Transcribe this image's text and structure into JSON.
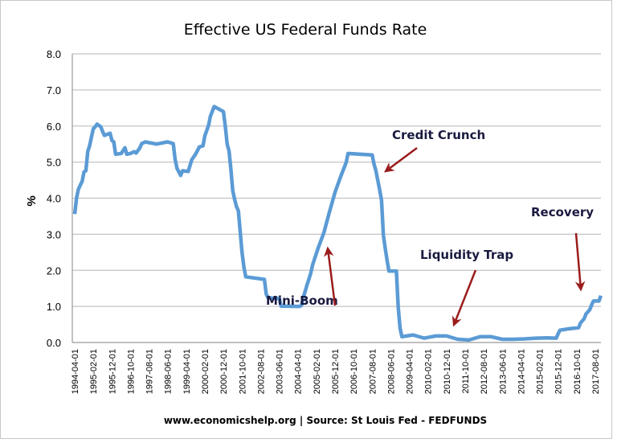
{
  "chart_data": {
    "type": "line",
    "title": "Effective US  Federal Funds Rate",
    "ylabel": "%",
    "xlabel": "",
    "ylim": [
      0,
      8
    ],
    "yticks": [
      "0.0",
      "1.0",
      "2.0",
      "3.0",
      "4.0",
      "5.0",
      "6.0",
      "7.0",
      "8.0"
    ],
    "xticks": [
      "1994-04-01",
      "1995-02-01",
      "1995-12-01",
      "1996-10-01",
      "1997-08-01",
      "1998-06-01",
      "1999-04-01",
      "2000-02-01",
      "2000-12-01",
      "2001-10-01",
      "2002-08-01",
      "2003-06-01",
      "2004-04-01",
      "2005-02-01",
      "2005-12-01",
      "2006-10-01",
      "2007-08-01",
      "2008-06-01",
      "2009-04-01",
      "2010-02-01",
      "2010-12-01",
      "2011-10-01",
      "2012-08-01",
      "2013-06-01",
      "2014-04-01",
      "2015-02-01",
      "2015-12-01",
      "2016-10-01",
      "2017-08-01"
    ],
    "grid": "horizontal",
    "line_color": "#5b9bd5",
    "annotation_color": "#9b1c1c",
    "series": [
      {
        "points": [
          [
            "1994-04",
            3.56
          ],
          [
            "1994-05",
            4.01
          ],
          [
            "1994-06",
            4.25
          ],
          [
            "1994-08",
            4.47
          ],
          [
            "1994-09",
            4.73
          ],
          [
            "1994-10",
            4.76
          ],
          [
            "1994-11",
            5.29
          ],
          [
            "1994-12",
            5.45
          ],
          [
            "1995-02",
            5.92
          ],
          [
            "1995-03",
            5.98
          ],
          [
            "1995-04",
            6.05
          ],
          [
            "1995-06",
            5.98
          ],
          [
            "1995-07",
            5.85
          ],
          [
            "1995-08",
            5.74
          ],
          [
            "1995-11",
            5.8
          ],
          [
            "1995-12",
            5.6
          ],
          [
            "1996-01",
            5.56
          ],
          [
            "1996-02",
            5.22
          ],
          [
            "1996-05",
            5.24
          ],
          [
            "1996-07",
            5.4
          ],
          [
            "1996-08",
            5.22
          ],
          [
            "1996-10",
            5.24
          ],
          [
            "1996-12",
            5.29
          ],
          [
            "1997-01",
            5.25
          ],
          [
            "1997-03",
            5.39
          ],
          [
            "1997-04",
            5.51
          ],
          [
            "1997-06",
            5.56
          ],
          [
            "1997-12",
            5.5
          ],
          [
            "1998-06",
            5.56
          ],
          [
            "1998-09",
            5.51
          ],
          [
            "1998-10",
            5.07
          ],
          [
            "1998-11",
            4.83
          ],
          [
            "1999-01",
            4.63
          ],
          [
            "1999-02",
            4.76
          ],
          [
            "1999-05",
            4.74
          ],
          [
            "1999-07",
            5.07
          ],
          [
            "1999-09",
            5.22
          ],
          [
            "1999-11",
            5.42
          ],
          [
            "2000-01",
            5.45
          ],
          [
            "2000-02",
            5.73
          ],
          [
            "2000-04",
            6.02
          ],
          [
            "2000-05",
            6.27
          ],
          [
            "2000-07",
            6.54
          ],
          [
            "2000-12",
            6.4
          ],
          [
            "2001-01",
            5.98
          ],
          [
            "2001-02",
            5.49
          ],
          [
            "2001-03",
            5.31
          ],
          [
            "2001-04",
            4.8
          ],
          [
            "2001-05",
            4.21
          ],
          [
            "2001-06",
            3.97
          ],
          [
            "2001-07",
            3.77
          ],
          [
            "2001-08",
            3.65
          ],
          [
            "2001-09",
            3.07
          ],
          [
            "2001-10",
            2.49
          ],
          [
            "2001-11",
            2.09
          ],
          [
            "2001-12",
            1.82
          ],
          [
            "2002-10",
            1.75
          ],
          [
            "2002-11",
            1.34
          ],
          [
            "2002-12",
            1.24
          ],
          [
            "2003-06",
            1.22
          ],
          [
            "2003-07",
            1.01
          ],
          [
            "2004-05",
            1.0
          ],
          [
            "2004-06",
            1.03
          ],
          [
            "2004-07",
            1.26
          ],
          [
            "2004-08",
            1.43
          ],
          [
            "2004-09",
            1.61
          ],
          [
            "2004-10",
            1.76
          ],
          [
            "2004-11",
            1.93
          ],
          [
            "2004-12",
            2.16
          ],
          [
            "2005-03",
            2.63
          ],
          [
            "2005-06",
            3.04
          ],
          [
            "2005-09",
            3.62
          ],
          [
            "2005-12",
            4.16
          ],
          [
            "2006-03",
            4.59
          ],
          [
            "2006-06",
            4.99
          ],
          [
            "2006-07",
            5.24
          ],
          [
            "2007-08",
            5.2
          ],
          [
            "2007-09",
            4.94
          ],
          [
            "2007-10",
            4.76
          ],
          [
            "2007-12",
            4.24
          ],
          [
            "2008-01",
            3.94
          ],
          [
            "2008-02",
            2.98
          ],
          [
            "2008-03",
            2.61
          ],
          [
            "2008-04",
            2.28
          ],
          [
            "2008-05",
            1.98
          ],
          [
            "2008-09",
            1.98
          ],
          [
            "2008-10",
            0.97
          ],
          [
            "2008-11",
            0.39
          ],
          [
            "2008-12",
            0.16
          ],
          [
            "2009-06",
            0.21
          ],
          [
            "2009-12",
            0.12
          ],
          [
            "2010-06",
            0.18
          ],
          [
            "2010-12",
            0.18
          ],
          [
            "2011-06",
            0.09
          ],
          [
            "2011-12",
            0.07
          ],
          [
            "2012-06",
            0.16
          ],
          [
            "2012-12",
            0.16
          ],
          [
            "2013-06",
            0.09
          ],
          [
            "2013-12",
            0.09
          ],
          [
            "2014-06",
            0.1
          ],
          [
            "2014-12",
            0.12
          ],
          [
            "2015-06",
            0.13
          ],
          [
            "2015-11",
            0.12
          ],
          [
            "2015-12",
            0.24
          ],
          [
            "2016-01",
            0.34
          ],
          [
            "2016-06",
            0.38
          ],
          [
            "2016-11",
            0.41
          ],
          [
            "2016-12",
            0.54
          ],
          [
            "2017-02",
            0.66
          ],
          [
            "2017-03",
            0.79
          ],
          [
            "2017-05",
            0.91
          ],
          [
            "2017-06",
            1.04
          ],
          [
            "2017-07",
            1.15
          ],
          [
            "2017-10",
            1.15
          ],
          [
            "2017-11",
            1.3
          ]
        ]
      }
    ],
    "annotations": [
      {
        "text": "Credit Crunch"
      },
      {
        "text": "Mini-Boom"
      },
      {
        "text": "Liquidity Trap"
      },
      {
        "text": "Recovery"
      }
    ],
    "source": "www.economicshelp.org | Source: St Louis Fed - FEDFUNDS"
  }
}
